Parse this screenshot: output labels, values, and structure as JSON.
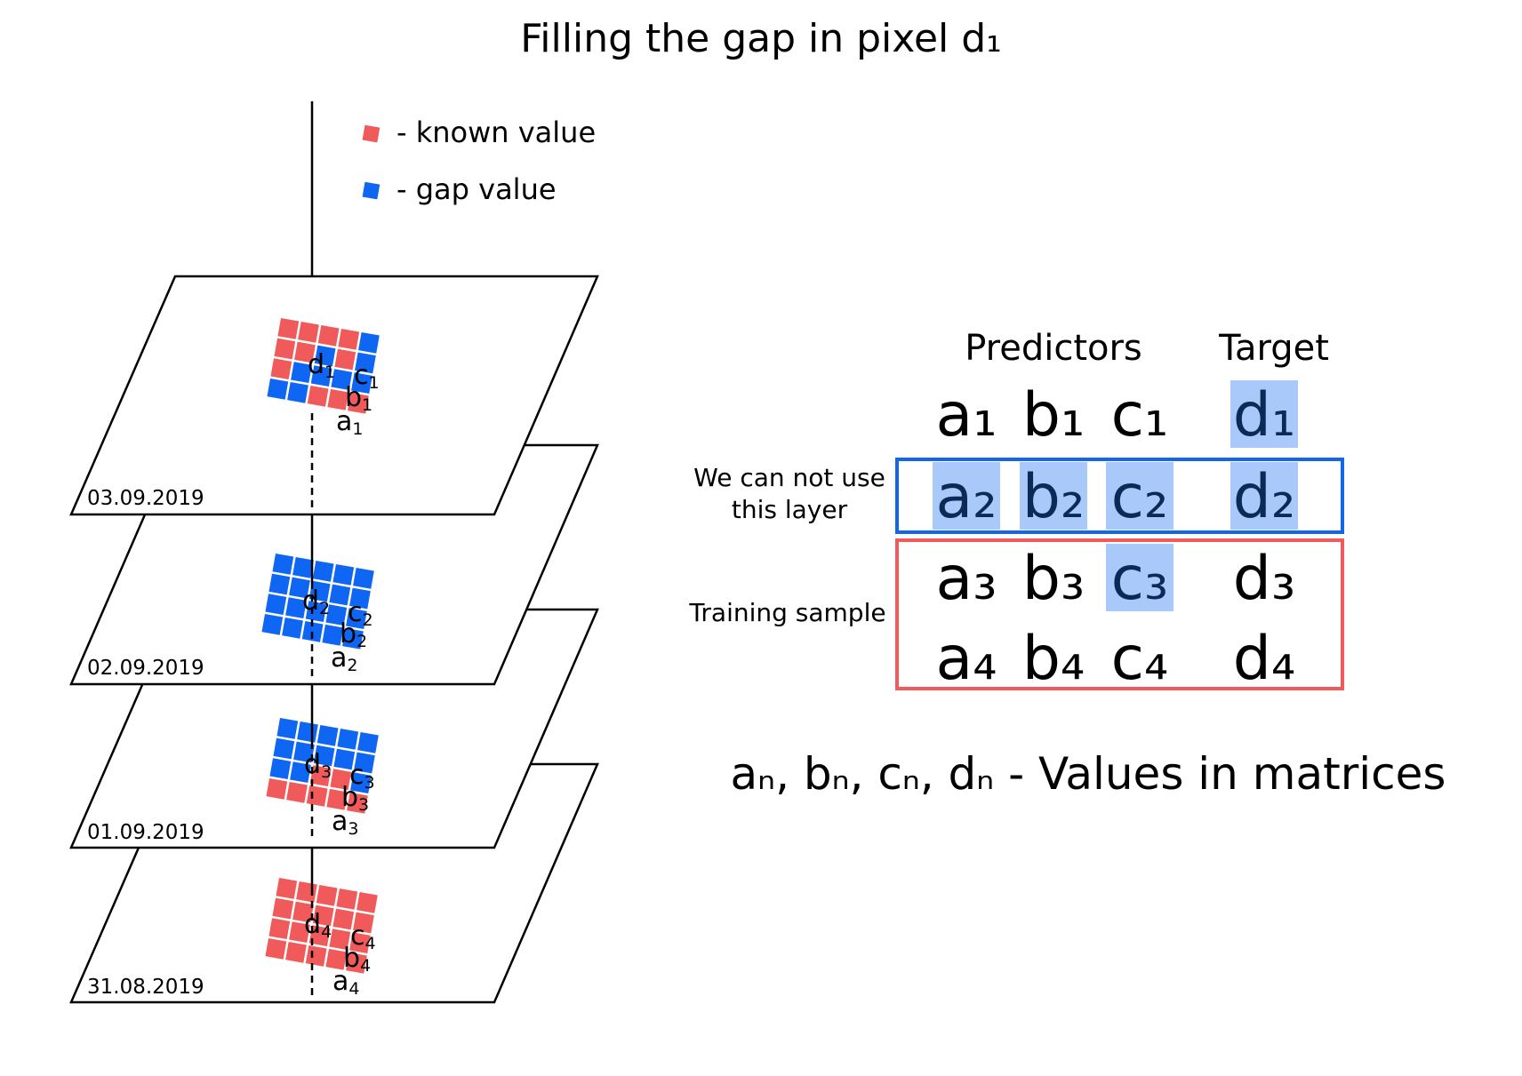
{
  "title": "Filling the gap in pixel d₁",
  "legend": {
    "known_label": "- known value",
    "gap_label": "- gap value",
    "known_color": "#f05a5a",
    "gap_color": "#0f66f2"
  },
  "colors": {
    "highlight": "#a9c9fb",
    "highlight_text": "#0b2a55",
    "blue_box": "#1466e8",
    "red_box": "#f05a5a"
  },
  "layers": [
    {
      "date": "03.09.2019",
      "labels": {
        "a": "a",
        "a_sub": "1",
        "b": "b",
        "b_sub": "1",
        "c": "c",
        "c_sub": "1",
        "d": "d",
        "d_sub": "1"
      },
      "pattern": [
        [
          1,
          1,
          1,
          1,
          2
        ],
        [
          1,
          1,
          2,
          1,
          2
        ],
        [
          1,
          2,
          2,
          2,
          2
        ],
        [
          2,
          2,
          1,
          1,
          1
        ]
      ]
    },
    {
      "date": "02.09.2019",
      "labels": {
        "a": "a",
        "a_sub": "2",
        "b": "b",
        "b_sub": "2",
        "c": "c",
        "c_sub": "2",
        "d": "d",
        "d_sub": "2"
      },
      "pattern": [
        [
          2,
          2,
          2,
          2,
          2
        ],
        [
          2,
          2,
          2,
          2,
          2
        ],
        [
          2,
          2,
          2,
          2,
          2
        ],
        [
          2,
          2,
          2,
          2,
          2
        ]
      ]
    },
    {
      "date": "01.09.2019",
      "labels": {
        "a": "a",
        "a_sub": "3",
        "b": "b",
        "b_sub": "3",
        "c": "c",
        "c_sub": "3",
        "d": "d",
        "d_sub": "3"
      },
      "pattern": [
        [
          2,
          2,
          2,
          2,
          2
        ],
        [
          2,
          2,
          2,
          2,
          2
        ],
        [
          2,
          2,
          1,
          1,
          2
        ],
        [
          1,
          1,
          1,
          1,
          1
        ]
      ]
    },
    {
      "date": "31.08.2019",
      "labels": {
        "a": "a",
        "a_sub": "4",
        "b": "b",
        "b_sub": "4",
        "c": "c",
        "c_sub": "4",
        "d": "d",
        "d_sub": "4"
      },
      "pattern": [
        [
          1,
          1,
          1,
          1,
          1
        ],
        [
          1,
          1,
          1,
          1,
          1
        ],
        [
          1,
          1,
          1,
          1,
          1
        ],
        [
          1,
          1,
          1,
          1,
          1
        ]
      ]
    }
  ],
  "table": {
    "predictors_header": "Predictors",
    "target_header": "Target",
    "rows": [
      {
        "a": "a₁",
        "b": "b₁",
        "c": "c₁",
        "d": "d₁",
        "hl": [
          false,
          false,
          false,
          true
        ]
      },
      {
        "a": "a₂",
        "b": "b₂",
        "c": "c₂",
        "d": "d₂",
        "hl": [
          true,
          true,
          true,
          true
        ]
      },
      {
        "a": "a₃",
        "b": "b₃",
        "c": "c₃",
        "d": "d₃",
        "hl": [
          false,
          false,
          true,
          false
        ]
      },
      {
        "a": "a₄",
        "b": "b₄",
        "c": "c₄",
        "d": "d₄",
        "hl": [
          false,
          false,
          false,
          false
        ]
      }
    ],
    "cannot_use_line1": "We can not use",
    "cannot_use_line2": "this layer",
    "training_label": "Training sample"
  },
  "footnote": "aₙ, bₙ, cₙ, dₙ - Values in matrices"
}
